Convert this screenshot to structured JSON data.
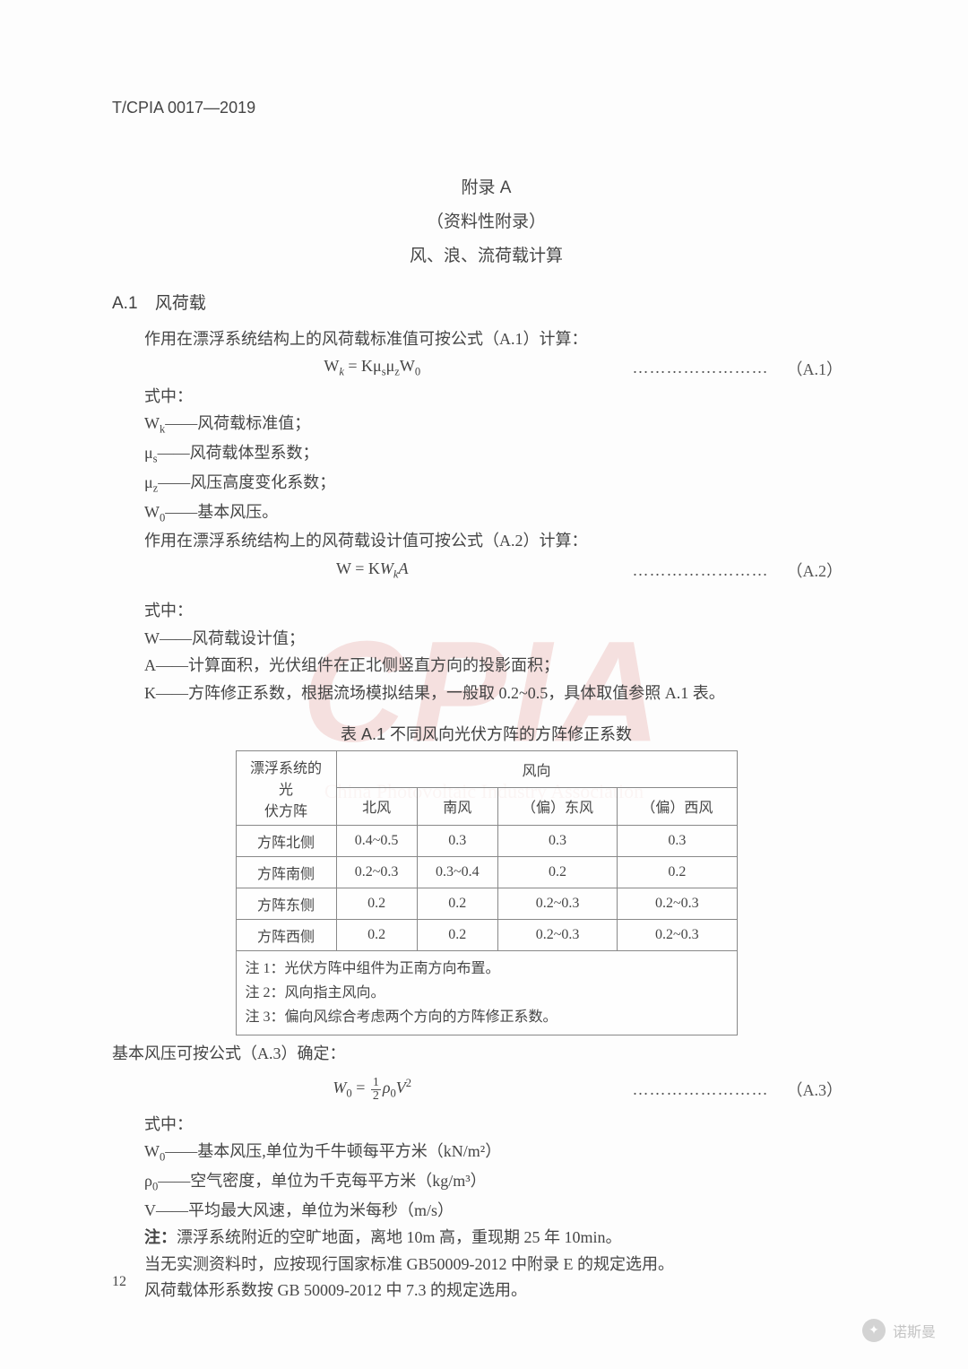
{
  "doc_code": "T/CPIA 0017—2019",
  "appendix": {
    "label": "附录 A",
    "subtitle": "（资料性附录）",
    "title": "风、浪、流荷载计算"
  },
  "sectionA1": {
    "number": "A.1",
    "title": "风荷载",
    "intro": "作用在漂浮系统结构上的风荷载标准值可按公式（A.1）计算：",
    "formula1": "W<sub><i>k</i></sub> = Kμ<sub>s</sub>μ<sub>z</sub>W<sub>0</sub>",
    "formula1_num": "（A.1）",
    "where": "式中：",
    "defs1": [
      {
        "sym": "W<sub>k</sub>",
        "desc": "——风荷载标准值；"
      },
      {
        "sym": "μ<sub>s</sub>",
        "desc": "——风荷载体型系数；"
      },
      {
        "sym": "μ<sub>z</sub>",
        "desc": "——风压高度变化系数；"
      },
      {
        "sym": "W<sub>0</sub>",
        "desc": "——基本风压。"
      }
    ],
    "intro2": "作用在漂浮系统结构上的风荷载设计值可按公式（A.2）计算：",
    "formula2": "W = K<i>W<sub>k</sub>A</i>",
    "formula2_num": "（A.2）",
    "where2": "式中：",
    "defs2": [
      {
        "sym": "W",
        "desc": "——风荷载设计值；"
      },
      {
        "sym": "A",
        "desc": "——计算面积，光伏组件在正北侧竖直方向的投影面积；"
      },
      {
        "sym": "K",
        "desc": "——方阵修正系数，根据流场模拟结果，一般取 0.2~0.5，具体取值参照 A.1 表。"
      }
    ]
  },
  "tableA1": {
    "title": "表 A.1 不同风向光伏方阵的方阵修正系数",
    "header_left_line1": "漂浮系统的光",
    "header_left_line2": "伏方阵",
    "header_group": "风向",
    "cols": [
      "北风",
      "南风",
      "（偏）东风",
      "（偏）西风"
    ],
    "rows": [
      {
        "label": "方阵北侧",
        "vals": [
          "0.4~0.5",
          "0.3",
          "0.3",
          "0.3"
        ]
      },
      {
        "label": "方阵南侧",
        "vals": [
          "0.2~0.3",
          "0.3~0.4",
          "0.2",
          "0.2"
        ]
      },
      {
        "label": "方阵东侧",
        "vals": [
          "0.2",
          "0.2",
          "0.2~0.3",
          "0.2~0.3"
        ]
      },
      {
        "label": "方阵西侧",
        "vals": [
          "0.2",
          "0.2",
          "0.2~0.3",
          "0.2~0.3"
        ]
      }
    ],
    "notes": [
      "注 1：光伏方阵中组件为正南方向布置。",
      "注 2：风向指主风向。",
      "注 3：偏向风综合考虑两个方向的方阵修正系数。"
    ]
  },
  "after_table": {
    "intro3": "基本风压可按公式（A.3）确定：",
    "formula3_left": "<i>W</i><sub>0</sub> = ",
    "formula3_frac_num": "1",
    "formula3_frac_den": "2",
    "formula3_right": "<i>ρ</i><sub>0</sub><i>V</i><sup>2</sup>",
    "formula3_num": "（A.3）",
    "where3": "式中：",
    "defs3": [
      {
        "sym": "W<sub>0</sub>",
        "desc": "——基本风压,单位为千牛顿每平方米（kN/m²）"
      },
      {
        "sym": "ρ<sub>0</sub>",
        "desc": "——空气密度，单位为千克每平方米（kg/m³）"
      },
      {
        "sym": "V",
        "desc": "——平均最大风速，单位为米每秒（m/s）"
      }
    ],
    "note_label": "注：",
    "note": "漂浮系统附近的空旷地面，离地 10m 高，重现期 25 年 10min。",
    "para1": "当无实测资料时，应按现行国家标准 GB50009-2012 中附录 E 的规定选用。",
    "para2": "风荷载体形系数按 GB 50009-2012 中 7.3 的规定选用。"
  },
  "page_number": "12",
  "watermark": {
    "main": "CPIA",
    "sub": "China Photovoltaic Industry Association"
  },
  "source": {
    "text": "诺斯曼"
  },
  "dots": "……………………",
  "colors": {
    "text": "#454545",
    "border": "#888888",
    "watermark": "rgba(200,58,52,0.15)"
  }
}
